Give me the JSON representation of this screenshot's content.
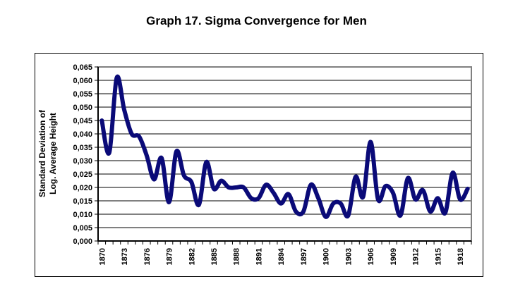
{
  "chart_data": {
    "type": "line",
    "title": "Graph 17. Sigma Convergence for Men",
    "xlabel": "",
    "ylabel_lines": [
      "Standard Deviation of",
      "Log. Average Height"
    ],
    "ylim": [
      0,
      0.065
    ],
    "y_ticks": [
      "0,000",
      "0,005",
      "0,010",
      "0,015",
      "0,020",
      "0,025",
      "0,030",
      "0,035",
      "0,040",
      "0,045",
      "0,050",
      "0,055",
      "0,060",
      "0,065"
    ],
    "x_tick_labels": [
      "1870",
      "1873",
      "1876",
      "1879",
      "1882",
      "1885",
      "1888",
      "1891",
      "1894",
      "1897",
      "1900",
      "1903",
      "1906",
      "1909",
      "1912",
      "1915",
      "1918"
    ],
    "grid": true,
    "legend": "none",
    "line_color": "#0a0a78",
    "x": [
      1870,
      1871,
      1872,
      1873,
      1874,
      1875,
      1876,
      1877,
      1878,
      1879,
      1880,
      1881,
      1882,
      1883,
      1884,
      1885,
      1886,
      1887,
      1888,
      1889,
      1890,
      1891,
      1892,
      1893,
      1894,
      1895,
      1896,
      1897,
      1898,
      1899,
      1900,
      1901,
      1902,
      1903,
      1904,
      1905,
      1906,
      1907,
      1908,
      1909,
      1910,
      1911,
      1912,
      1913,
      1914,
      1915,
      1916,
      1917,
      1918,
      1919
    ],
    "series": [
      {
        "name": "Standard Deviation of Log. Average Height",
        "values": [
          0.045,
          0.033,
          0.061,
          0.049,
          0.04,
          0.039,
          0.032,
          0.023,
          0.031,
          0.0145,
          0.0335,
          0.0245,
          0.022,
          0.0135,
          0.0295,
          0.0195,
          0.0225,
          0.02,
          0.02,
          0.02,
          0.016,
          0.016,
          0.021,
          0.018,
          0.014,
          0.0175,
          0.011,
          0.011,
          0.021,
          0.016,
          0.009,
          0.014,
          0.014,
          0.0095,
          0.024,
          0.0165,
          0.037,
          0.0155,
          0.0205,
          0.018,
          0.0095,
          0.0235,
          0.0155,
          0.019,
          0.011,
          0.016,
          0.0105,
          0.0255,
          0.0155,
          0.0195
        ]
      }
    ]
  }
}
